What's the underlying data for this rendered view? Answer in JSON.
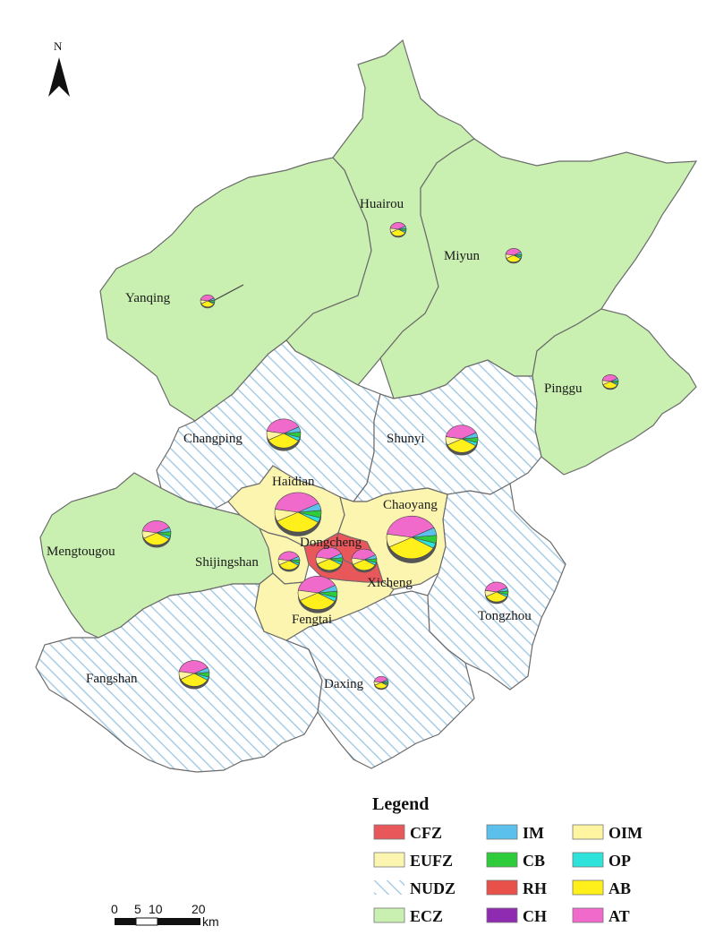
{
  "north": {
    "label": "N"
  },
  "districts": [
    {
      "name": "Yanqing",
      "zone": "ECZ"
    },
    {
      "name": "Huairou",
      "zone": "ECZ"
    },
    {
      "name": "Miyun",
      "zone": "ECZ"
    },
    {
      "name": "Pinggu",
      "zone": "ECZ"
    },
    {
      "name": "Mengtougou",
      "zone": "ECZ"
    },
    {
      "name": "Changping",
      "zone": "NUDZ"
    },
    {
      "name": "Shunyi",
      "zone": "NUDZ"
    },
    {
      "name": "Fangshan",
      "zone": "NUDZ"
    },
    {
      "name": "Daxing",
      "zone": "NUDZ"
    },
    {
      "name": "Tongzhou",
      "zone": "NUDZ"
    },
    {
      "name": "Haidian",
      "zone": "EUFZ"
    },
    {
      "name": "Chaoyang",
      "zone": "EUFZ"
    },
    {
      "name": "Shijingshan",
      "zone": "EUFZ"
    },
    {
      "name": "Fengtai",
      "zone": "EUFZ"
    },
    {
      "name": "Dongcheng",
      "zone": "CFZ"
    },
    {
      "name": "Xicheng",
      "zone": "CFZ"
    }
  ],
  "zone_colors": {
    "CFZ": "#e8575a",
    "EUFZ": "#fbf5b0",
    "NUDZ": "#ffffff",
    "NUDZ_hatch": "#a8cde6",
    "ECZ": "#c9f0b0"
  },
  "pie_colors": {
    "IM": "#5bc0eb",
    "CB": "#2ecc3a",
    "RH": "#e8504a",
    "CH": "#8e2bb0",
    "OIM": "#fff5a0",
    "OP": "#2fe3dd",
    "AB": "#ffef1a",
    "AT": "#f06acb"
  },
  "legend": {
    "title": "Legend",
    "items": [
      {
        "label": "CFZ",
        "kind": "zone"
      },
      {
        "label": "IM",
        "kind": "pie"
      },
      {
        "label": "OIM",
        "kind": "pie"
      },
      {
        "label": "EUFZ",
        "kind": "zone"
      },
      {
        "label": "CB",
        "kind": "pie"
      },
      {
        "label": "OP",
        "kind": "pie"
      },
      {
        "label": "NUDZ",
        "kind": "zone"
      },
      {
        "label": "RH",
        "kind": "pie"
      },
      {
        "label": "AB",
        "kind": "pie"
      },
      {
        "label": "ECZ",
        "kind": "zone"
      },
      {
        "label": "CH",
        "kind": "pie"
      },
      {
        "label": "AT",
        "kind": "pie"
      }
    ]
  },
  "scale_bar": {
    "ticks": [
      "0",
      "5",
      "10",
      "20"
    ],
    "unit": "km"
  }
}
